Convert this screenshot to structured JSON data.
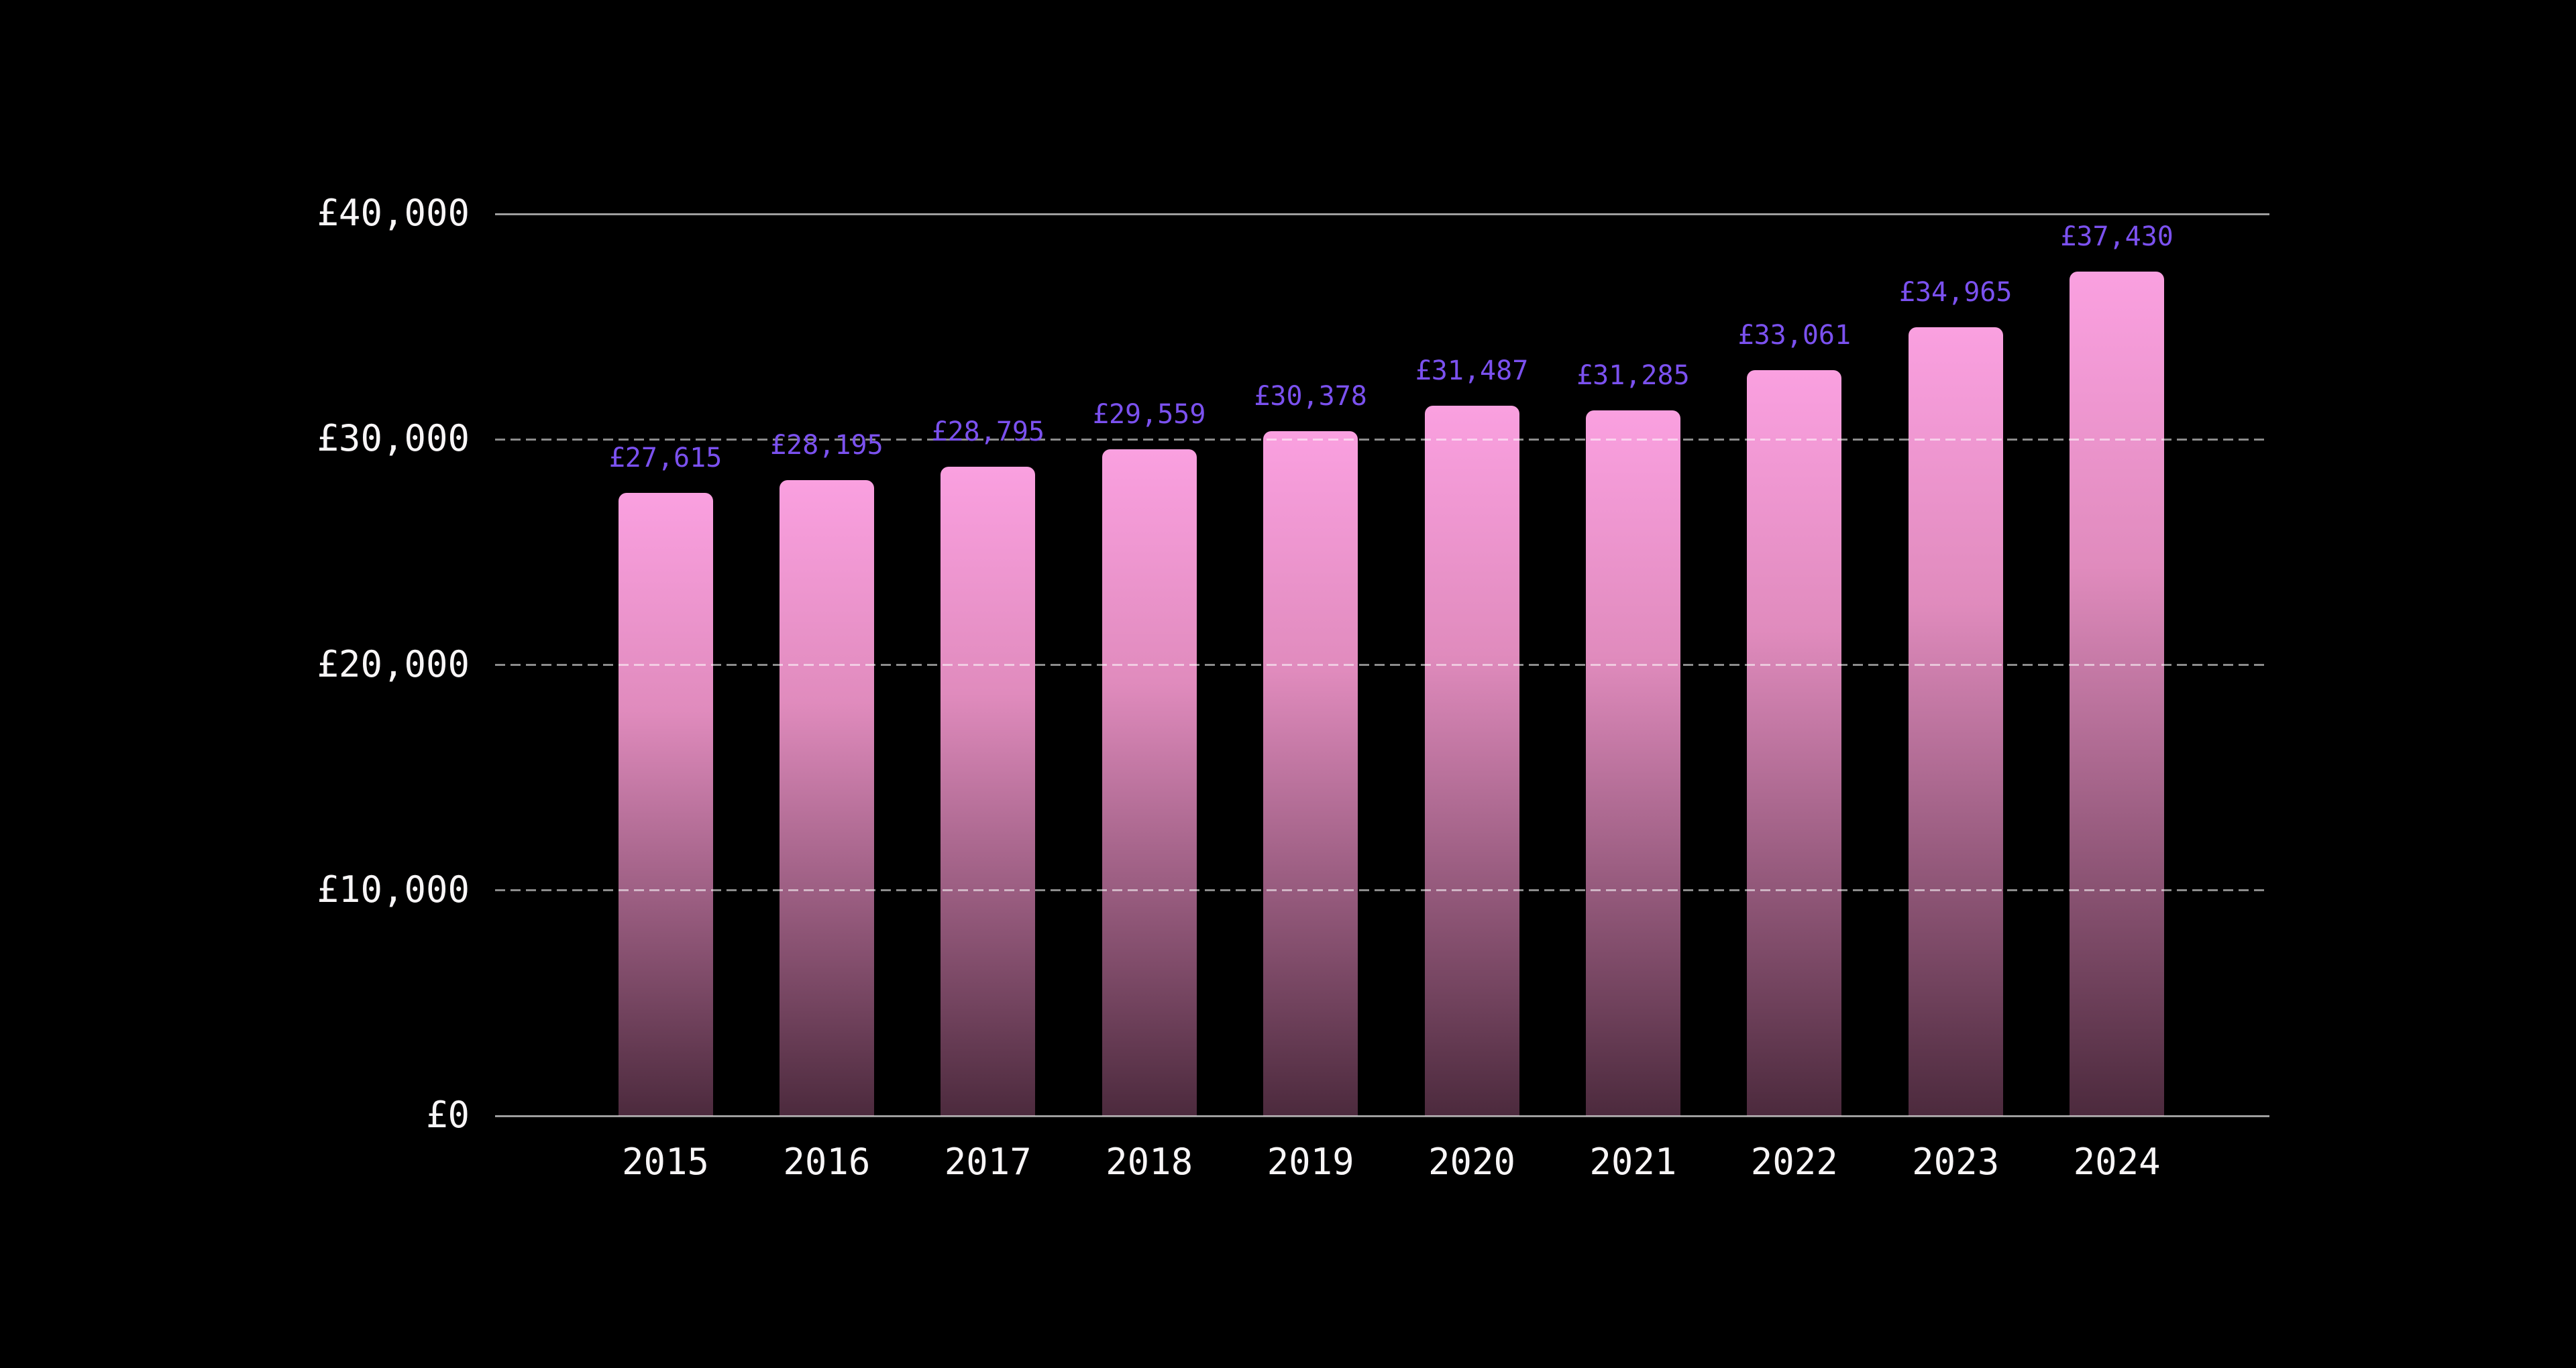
{
  "chart_data": {
    "type": "bar",
    "title": "",
    "xlabel": "",
    "ylabel": "",
    "categories": [
      "2015",
      "2016",
      "2017",
      "2018",
      "2019",
      "2020",
      "2021",
      "2022",
      "2023",
      "2024"
    ],
    "values": [
      27615,
      28195,
      28795,
      29559,
      30378,
      31487,
      31285,
      33061,
      34965,
      37430
    ],
    "data_labels": [
      "£27,615",
      "£28,195",
      "£28,795",
      "£29,559",
      "£30,378",
      "£31,487",
      "£31,285",
      "£33,061",
      "£34,965",
      "£37,430"
    ],
    "ylim": [
      0,
      40000
    ],
    "yticks": [
      {
        "value": 0,
        "label": "£0",
        "line": "solid"
      },
      {
        "value": 10000,
        "label": "£10,000",
        "line": "dashed"
      },
      {
        "value": 20000,
        "label": "£20,000",
        "line": "dashed"
      },
      {
        "value": 30000,
        "label": "£30,000",
        "line": "dashed"
      },
      {
        "value": 40000,
        "label": "£40,000",
        "line": "solid"
      }
    ],
    "grid": "horizontal",
    "legend": "none",
    "colors": {
      "background": "#000000",
      "bar_gradient_top": "#faa0e0",
      "bar_gradient_mid": "#e08bbd",
      "bar_gradient_bottom": "#4c2a3d",
      "data_label": "#7b51ef",
      "axis_text": "#f7f5f6",
      "gridline_dashed": "rgba(255,255,255,0.55)",
      "gridline_solid": "rgba(255,255,255,0.62)"
    }
  }
}
